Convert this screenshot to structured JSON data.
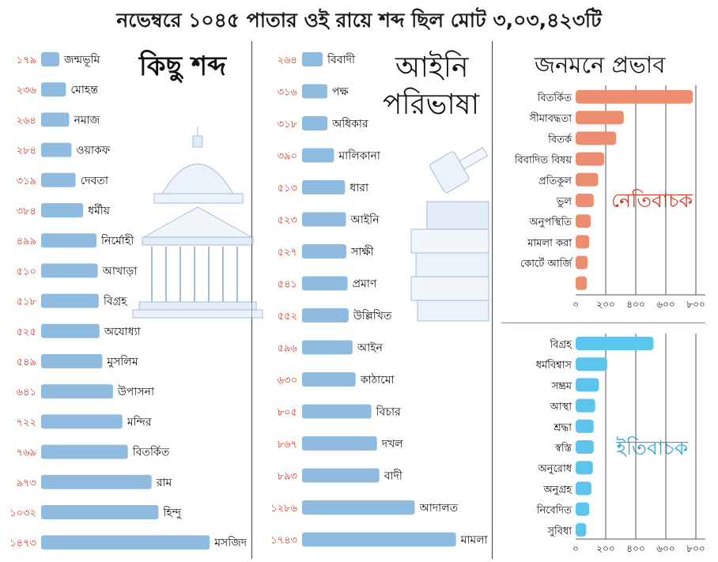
{
  "header": {
    "title": "নভেম্বরে ১০৪৫ পাতার ওই রায়ে শব্দ ছিল মোট ৩,০৩,৪২৩টি"
  },
  "panels": {
    "words_title": "কিছু শব্দ",
    "legal_title_line1": "আইনি",
    "legal_title_line2": "পরিভাষা",
    "impact_title": "জনমনে প্রভাব",
    "negative_label": "নেতিবাচক",
    "positive_label": "ইতিবাচক"
  },
  "colors": {
    "bar_blue": "#8fbbe0",
    "value_red": "#d63b2a",
    "negative_bar": "#ed8e70",
    "positive_bar": "#5dc4ec"
  },
  "illustrations": {
    "left": "supreme-court-building-icon",
    "middle": "gavel-and-books-icon"
  },
  "chart_data": [
    {
      "type": "bar",
      "orientation": "horizontal",
      "title": "কিছু শব্দ",
      "categories": [
        "জন্মভূমি",
        "মোহন্ত",
        "নমাজ",
        "ওয়াকফ",
        "দেবতা",
        "ধর্মীয়",
        "নির্মোহী",
        "আখাড়া",
        "বিগ্রহ",
        "অযোধ্যা",
        "মুসলিম",
        "উপাসনা",
        "মন্দির",
        "বিতর্কিত",
        "রাম",
        "হিন্দু",
        "মসজিদ"
      ],
      "values": [
        179,
        236,
        264,
        284,
        319,
        384,
        499,
        510,
        518,
        525,
        549,
        641,
        722,
        769,
        973,
        1032,
        1473
      ],
      "value_labels": [
        "১৭৯",
        "২৩৬",
        "২৬৪",
        "২৮৪",
        "৩১৯",
        "৩৮৪",
        "৪৯৯",
        "৫১০",
        "৫১৮",
        "৫২৫",
        "৫৪৯",
        "৬৪১",
        "৭২২",
        "৭৬৯",
        "৯৭৩",
        "১০৩২",
        "১৪৭৩"
      ]
    },
    {
      "type": "bar",
      "orientation": "horizontal",
      "title": "আইনি পরিভাষা",
      "categories": [
        "বিবাদী",
        "পক্ষ",
        "অধিকার",
        "মালিকানা",
        "ধারা",
        "আইনি",
        "সাক্ষী",
        "প্রমাণ",
        "উল্লিখিত",
        "আইন",
        "কাঠামো",
        "বিচার",
        "দখল",
        "বাদী",
        "আদালত",
        "মামলা"
      ],
      "values": [
        264,
        316,
        318,
        390,
        513,
        523,
        527,
        541,
        552,
        596,
        630,
        805,
        867,
        893,
        1286,
        1743
      ],
      "value_labels": [
        "২৬৪",
        "৩১৬",
        "৩১৮",
        "৩৯০",
        "৫১৩",
        "৫২৩",
        "৫২৭",
        "৫৪১",
        "৫৫২",
        "৫৯৬",
        "৬৩০",
        "৮০৫",
        "৮৬৭",
        "৮৯৩",
        "১২৮৬",
        "১৭৪৩"
      ]
    },
    {
      "type": "bar",
      "orientation": "horizontal",
      "title": "জনমনে প্রভাব",
      "annotation": "নেতিবাচক",
      "categories": [
        "বিতর্কিত",
        "সীমাবদ্ধতা",
        "বিতর্ক",
        "বিবাদিত বিষয়",
        "প্রতিকূল",
        "ভুল",
        "অনুপস্থিতি",
        "মামলা করা",
        "কোর্টে আর্জি",
        ""
      ],
      "values": [
        780,
        320,
        270,
        190,
        150,
        120,
        100,
        90,
        80,
        75
      ],
      "xlim": [
        0,
        850
      ],
      "ticks": [
        0,
        200,
        400,
        600,
        800
      ],
      "tick_labels": [
        "০",
        "২০০",
        "৪০০",
        "৬০০",
        "৮০০"
      ]
    },
    {
      "type": "bar",
      "orientation": "horizontal",
      "annotation": "ইতিবাচক",
      "categories": [
        "বিগ্রহ",
        "ধর্মবিশ্বাস",
        "সম্ভ্রম",
        "আস্থা",
        "শ্রদ্ধা",
        "স্বস্তি",
        "অনুরোধ",
        "অনুগ্রহ",
        "নিবেদিত",
        "সুবিধা"
      ],
      "values": [
        518,
        210,
        155,
        130,
        120,
        120,
        115,
        105,
        90,
        70
      ],
      "xlim": [
        0,
        850
      ],
      "ticks": [
        0,
        200,
        400,
        600,
        800
      ],
      "tick_labels": [
        "০",
        "২০০",
        "৪০০",
        "৬০০",
        "৮০০"
      ]
    }
  ]
}
